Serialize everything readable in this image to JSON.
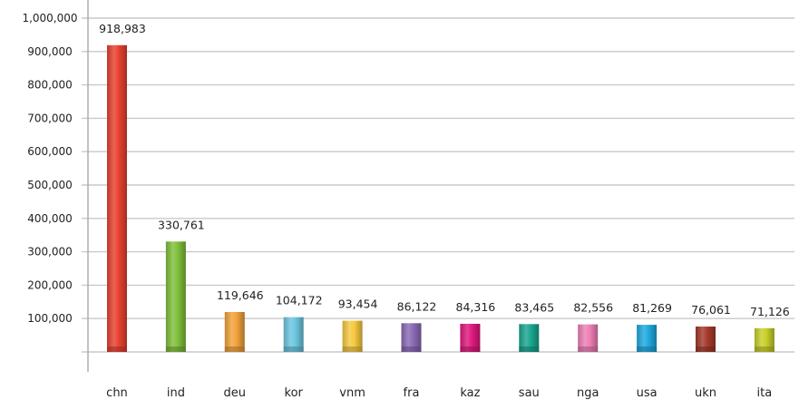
{
  "chart_data": {
    "type": "bar",
    "categories": [
      "chn",
      "ind",
      "deu",
      "kor",
      "vnm",
      "fra",
      "kaz",
      "sau",
      "nga",
      "usa",
      "ukn",
      "ita"
    ],
    "values": [
      918983,
      330761,
      119646,
      104172,
      93454,
      86122,
      84316,
      83465,
      82556,
      81269,
      76061,
      71126
    ],
    "data_labels": [
      "918,983",
      "330,761",
      "119,646",
      "104,172",
      "93,454",
      "86,122",
      "84,316",
      "83,465",
      "82,556",
      "81,269",
      "76,061",
      "71,126"
    ],
    "y_ticks": [
      {
        "value": 100000,
        "label": "100,000"
      },
      {
        "value": 200000,
        "label": "200,000"
      },
      {
        "value": 300000,
        "label": "300,000"
      },
      {
        "value": 400000,
        "label": "400,000"
      },
      {
        "value": 500000,
        "label": "500,000"
      },
      {
        "value": 600000,
        "label": "600,000"
      },
      {
        "value": 700000,
        "label": "700,000"
      },
      {
        "value": 800000,
        "label": "800,000"
      },
      {
        "value": 900000,
        "label": "900,000"
      },
      {
        "value": 1000000,
        "label": "1,000,000"
      }
    ],
    "ylim": [
      0,
      1000000
    ],
    "grid": true,
    "legend": "none",
    "title": "",
    "xlabel": "",
    "ylabel": "",
    "colors": [
      "#e8412f",
      "#7fbf3b",
      "#f2a23a",
      "#6cc6df",
      "#f7c940",
      "#8a6ab5",
      "#e0197d",
      "#1aa68f",
      "#ee7fb6",
      "#1fa9df",
      "#a63a2c",
      "#c6cf2a"
    ]
  }
}
